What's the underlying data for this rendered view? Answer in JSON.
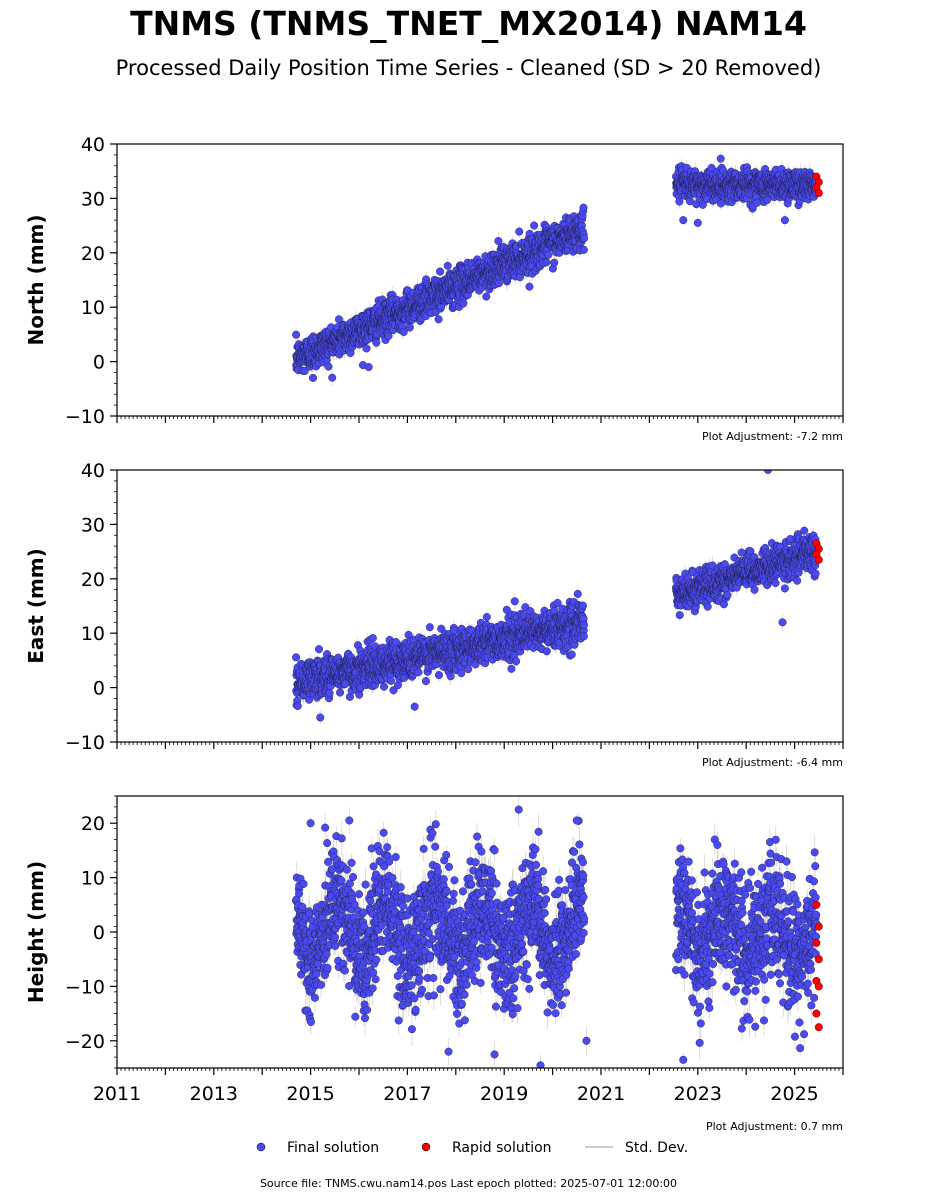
{
  "title": "TNMS (TNMS_TNET_MX2014) NAM14",
  "subtitle": "Processed Daily Position Time Series - Cleaned (SD > 20 Removed)",
  "footer": "Source file: TNMS.cwu.nam14.pos  Last epoch plotted: 2025-07-01 12:00:00",
  "legend": {
    "final": "Final solution",
    "rapid": "Rapid solution",
    "std": "Std. Dev."
  },
  "colors": {
    "final": "#4a4af0",
    "rapid": "#ff0000",
    "std": "#bbbbbb"
  },
  "chart_data": [
    {
      "type": "scatter",
      "panel": "north",
      "ylabel": "North (mm)",
      "adjustment": "Plot Adjustment: -7.2 mm",
      "xlim": [
        2011,
        2026
      ],
      "ylim": [
        -10,
        40
      ],
      "yticks": [
        -10,
        0,
        10,
        20,
        30,
        40
      ],
      "xtick_labels": [],
      "segments": [
        {
          "x_start": 2014.7,
          "x_end": 2020.65,
          "y_start": 0.5,
          "y_end": 24.5,
          "spread": 1.6
        },
        {
          "x_start": 2022.55,
          "x_end": 2025.45,
          "y_start": 32.5,
          "y_end": 32.5,
          "spread": 1.4
        }
      ],
      "rapid": {
        "x_start": 2025.45,
        "x_end": 2025.5,
        "values": [
          34.0,
          33.0,
          32.0,
          31.0
        ]
      },
      "outliers": [
        [
          2016.2,
          -1
        ],
        [
          2015.05,
          -3
        ],
        [
          2022.7,
          26
        ],
        [
          2024.8,
          26
        ],
        [
          2023.0,
          25.5
        ]
      ]
    },
    {
      "type": "scatter",
      "panel": "east",
      "ylabel": "East (mm)",
      "adjustment": "Plot Adjustment: -6.4 mm",
      "xlim": [
        2011,
        2026
      ],
      "ylim": [
        -10,
        40
      ],
      "yticks": [
        -10,
        0,
        10,
        20,
        30,
        40
      ],
      "xtick_labels": [],
      "segments": [
        {
          "x_start": 2014.7,
          "x_end": 2020.65,
          "y_start": 1.0,
          "y_end": 12.0,
          "spread": 1.8
        },
        {
          "x_start": 2022.55,
          "x_end": 2025.45,
          "y_start": 17.0,
          "y_end": 25.0,
          "spread": 1.6
        }
      ],
      "rapid": {
        "x_start": 2025.45,
        "x_end": 2025.5,
        "values": [
          26.5,
          25.5,
          24.5,
          23.5
        ]
      },
      "outliers": [
        [
          2024.45,
          40
        ],
        [
          2024.75,
          12
        ],
        [
          2015.2,
          -5.5
        ],
        [
          2017.15,
          -3.5
        ]
      ]
    },
    {
      "type": "scatter",
      "panel": "height",
      "ylabel": "Height (mm)",
      "adjustment": "Plot Adjustment: 0.7 mm",
      "xlim": [
        2011,
        2026
      ],
      "ylim": [
        -25,
        25
      ],
      "yticks": [
        -20,
        -10,
        0,
        10,
        20
      ],
      "xtick_labels": [
        "2011",
        "2013",
        "2015",
        "2017",
        "2019",
        "2021",
        "2023",
        "2025"
      ],
      "segments": [
        {
          "x_start": 2014.7,
          "x_end": 2020.65,
          "y_start": 0.5,
          "y_end": 0.5,
          "spread": 5.5,
          "seasonal_amp": 5.0
        },
        {
          "x_start": 2022.55,
          "x_end": 2025.45,
          "y_start": 1.0,
          "y_end": -1.0,
          "spread": 5.5,
          "seasonal_amp": 4.0
        }
      ],
      "rapid": {
        "x_start": 2025.45,
        "x_end": 2025.5,
        "values": [
          5,
          1,
          -2,
          -5,
          -9,
          -10,
          -15,
          -17.5
        ]
      },
      "outliers": [
        [
          2015.0,
          20
        ],
        [
          2015.8,
          20.5
        ],
        [
          2019.3,
          22.5
        ],
        [
          2020.5,
          20.5
        ],
        [
          2022.7,
          -23.5
        ],
        [
          2019.75,
          -24.5
        ],
        [
          2018.8,
          -22.5
        ],
        [
          2017.85,
          -22
        ],
        [
          2020.7,
          -20
        ]
      ]
    }
  ]
}
